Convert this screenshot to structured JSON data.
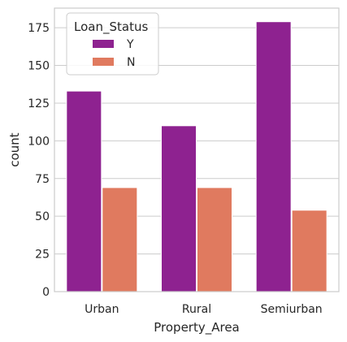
{
  "chart_data": {
    "type": "bar",
    "categories": [
      "Urban",
      "Rural",
      "Semiurban"
    ],
    "series": [
      {
        "name": "Y",
        "values": [
          133,
          110,
          179
        ],
        "color": "#8e2290"
      },
      {
        "name": "N",
        "values": [
          69,
          69,
          54
        ],
        "color": "#e07a5f"
      }
    ],
    "xlabel": "Property_Area",
    "ylabel": "count",
    "ylim": [
      0,
      188
    ],
    "yticks": [
      0,
      25,
      50,
      75,
      100,
      125,
      150,
      175
    ],
    "grid": true,
    "legend": {
      "title": "Loan_Status",
      "placement": "top-left"
    }
  }
}
